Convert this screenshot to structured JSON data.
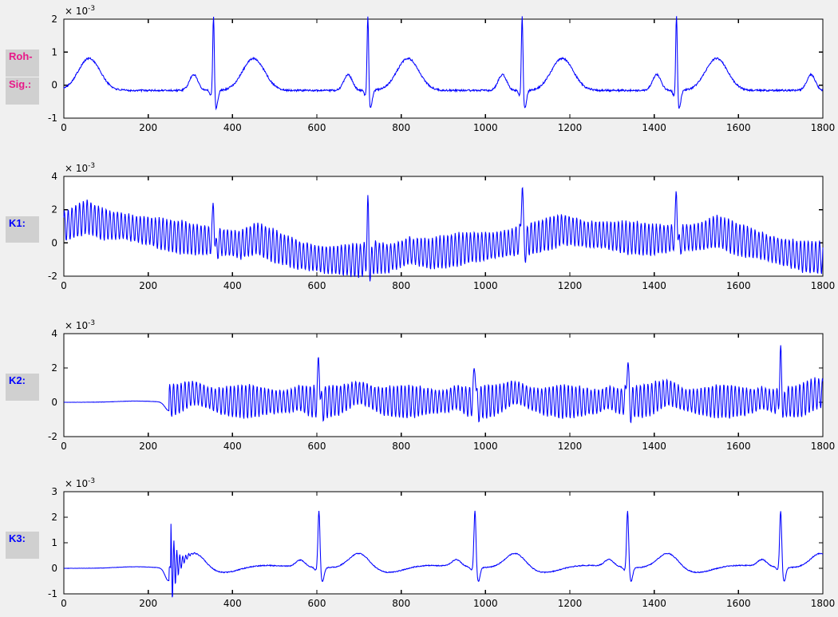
{
  "figure": {
    "bg_color": "#f0f0f0",
    "plot_bg": "#ffffff",
    "frame_color": "#000000",
    "tick_label_color": "#000000",
    "line_color": "#0000ff",
    "label_bg": "#d0d0d0"
  },
  "labels": {
    "roh": {
      "text": "Roh-",
      "color": "#e81889"
    },
    "sig": {
      "text": "Sig.:",
      "color": "#e81889"
    },
    "k1": {
      "text": "K1:",
      "color": "#0000ff"
    },
    "k2": {
      "text": "K2:",
      "color": "#0000ff"
    },
    "k3": {
      "text": "K3:",
      "color": "#0000ff"
    }
  },
  "chart_data": [
    {
      "id": "roh-sig",
      "type": "line",
      "title": "",
      "xlabel": "",
      "ylabel": "",
      "grid": false,
      "legend": null,
      "xlim": [
        0,
        1800
      ],
      "ylim": [
        -1,
        2
      ],
      "x_ticks": [
        0,
        200,
        400,
        600,
        800,
        1000,
        1200,
        1400,
        1600,
        1800
      ],
      "y_ticks": [
        -1,
        0,
        1,
        2
      ],
      "y_scale": {
        "mantissa": "× 10",
        "exponent": "-3"
      },
      "description": "Raw ECG signal: baseline -0.16e-3, P waves, tall clipped QRS spikes (~2.3e-3) and T waves (~0.8e-3), beat period ~366 samples",
      "signal": {
        "kind": "ecg",
        "baseline_mv": -0.16,
        "noise_amp": 0.028,
        "beat_centers": [
          -35,
          355,
          721,
          1087,
          1453,
          1819
        ],
        "qrs": {
          "width": 1.9,
          "amp": 2.45
        },
        "q": {
          "offset": -6,
          "width": 3,
          "amp": -0.15
        },
        "s": {
          "offset": 6,
          "width": 4,
          "amp": -0.55
        },
        "p": {
          "offset": -47,
          "width": 10,
          "amp": 0.48
        },
        "t": {
          "offset": 95,
          "width": 26,
          "amp": 0.97
        }
      }
    },
    {
      "id": "k1",
      "type": "line",
      "title": "",
      "xlabel": "",
      "ylabel": "",
      "grid": false,
      "legend": null,
      "xlim": [
        0,
        1800
      ],
      "ylim": [
        -2,
        4
      ],
      "x_ticks": [
        0,
        200,
        400,
        600,
        800,
        1000,
        1200,
        1400,
        1600,
        1800
      ],
      "y_ticks": [
        -2,
        0,
        2,
        4
      ],
      "y_scale": {
        "mantissa": "× 10",
        "exponent": "-3"
      },
      "description": "ECG with strong high-frequency mains noise (~±0.9e-3) and slow baseline wander; QRS spikes reach 2.6/2.1/4.0/3.3e-3 at x=355/721/1087/1453",
      "signal": {
        "kind": "ecg_noisy_wander",
        "noise_amp": 0.07,
        "osc": {
          "period": 9,
          "amp": 0.9,
          "mod_period": 217,
          "mod_amp": 0.12,
          "phase": 0.7
        },
        "wander_keypoints": [
          [
            0,
            1.0
          ],
          [
            55,
            1.55
          ],
          [
            90,
            1.15
          ],
          [
            150,
            0.95
          ],
          [
            200,
            0.7
          ],
          [
            250,
            0.45
          ],
          [
            300,
            0.25
          ],
          [
            355,
            0.12
          ],
          [
            420,
            -0.1
          ],
          [
            455,
            0.28
          ],
          [
            500,
            -0.2
          ],
          [
            560,
            -0.75
          ],
          [
            620,
            -1.0
          ],
          [
            700,
            -1.05
          ],
          [
            733,
            -0.85
          ],
          [
            770,
            -0.95
          ],
          [
            820,
            -0.45
          ],
          [
            868,
            -0.65
          ],
          [
            910,
            -0.5
          ],
          [
            960,
            -0.3
          ],
          [
            1010,
            -0.2
          ],
          [
            1060,
            0.05
          ],
          [
            1090,
            0.2
          ],
          [
            1130,
            0.4
          ],
          [
            1185,
            0.8
          ],
          [
            1235,
            0.55
          ],
          [
            1290,
            0.45
          ],
          [
            1345,
            0.3
          ],
          [
            1400,
            0.2
          ],
          [
            1453,
            0.3
          ],
          [
            1500,
            0.35
          ],
          [
            1550,
            0.72
          ],
          [
            1600,
            0.2
          ],
          [
            1650,
            -0.15
          ],
          [
            1700,
            -0.5
          ],
          [
            1750,
            -0.8
          ],
          [
            1800,
            -0.88
          ]
        ],
        "beat_centers": [
          355,
          721,
          1087,
          1453
        ],
        "qrs_amps": [
          2.45,
          3.05,
          3.9,
          3.05
        ],
        "qrs_width": 2.0,
        "s": {
          "offset": 5,
          "width": 4,
          "amp": -0.6
        }
      }
    },
    {
      "id": "k2",
      "type": "line",
      "title": "",
      "xlabel": "",
      "ylabel": "",
      "grid": false,
      "legend": null,
      "xlim": [
        0,
        1800
      ],
      "ylim": [
        -2,
        4
      ],
      "x_ticks": [
        0,
        200,
        400,
        600,
        800,
        1000,
        1200,
        1400,
        1600,
        1800
      ],
      "y_ticks": [
        -2,
        0,
        2,
        4
      ],
      "y_scale": {
        "mantissa": "× 10",
        "exponent": "-3"
      },
      "description": "Flat zero until ~250, small dip at ~248, then noisy ECG (osc ±0.8e-3); QRS spikes ~2.9e-3 at x=605/975/1337/1700",
      "signal": {
        "kind": "onset_noisy_ecg",
        "onset": 250,
        "pre": {
          "hump": [
            170,
            45,
            0.07
          ],
          "dip": [
            249,
            9,
            -0.5
          ],
          "noise": 0.006
        },
        "baseline_mv": 0.05,
        "noise_amp": 0.06,
        "osc": {
          "period": 9,
          "amp": 0.82,
          "mod_period": 190,
          "mod_amp": 0.2,
          "phase": 2.1
        },
        "beat_centers": [
          215,
          605,
          975,
          1337,
          1700
        ],
        "qrs_amps": [
          2.6,
          2.6,
          2.5,
          2.7,
          2.7
        ],
        "qrs_width": 2.2,
        "p": {
          "offset": -45,
          "width": 11,
          "amp": 0.22
        },
        "t": {
          "offset": 95,
          "width": 25,
          "amp": 0.5
        },
        "s": {
          "offset": 6,
          "width": 4,
          "amp": -0.4
        }
      }
    },
    {
      "id": "k3",
      "type": "line",
      "title": "",
      "xlabel": "",
      "ylabel": "",
      "grid": false,
      "legend": null,
      "xlim": [
        0,
        1800
      ],
      "ylim": [
        -1,
        3
      ],
      "x_ticks": [
        0,
        200,
        400,
        600,
        800,
        1000,
        1200,
        1400,
        1600,
        1800
      ],
      "y_ticks": [
        -1,
        0,
        1,
        2,
        3
      ],
      "y_scale": {
        "mantissa": "× 10",
        "exponent": "-3"
      },
      "description": "Filtered clean ECG: flat zero until ~250 with dip to -0.6e-3 and decaying ringing burst, then beats with QRS ~2.3e-3 at x=605/975/1337/1700, T waves ~0.6e-3",
      "signal": {
        "kind": "onset_ecg",
        "onset": 250,
        "pre": {
          "hump": [
            170,
            45,
            0.06
          ],
          "dip": [
            248,
            8,
            -0.5
          ],
          "noise": 0.005
        },
        "baseline_mv": 0.02,
        "noise_amp": 0.018,
        "ring": {
          "start": 254,
          "period": 7,
          "decay": 13,
          "amp": 1.7
        },
        "beat_centers": [
          215,
          605,
          975,
          1337,
          1700
        ],
        "qrs_amps": [
          2.3,
          2.3,
          2.3,
          2.3,
          2.3
        ],
        "qrs_width": 2.4,
        "q": {
          "offset": -7,
          "width": 3.5,
          "amp": -0.12
        },
        "s": {
          "offset": 8,
          "width": 4,
          "amp": -0.55
        },
        "p": {
          "offset": -44,
          "width": 11,
          "amp": 0.27
        },
        "t": {
          "offset": 96,
          "width": 24,
          "amp": 0.6
        },
        "after_t_dip": {
          "offset": 165,
          "width": 38,
          "amp": -0.22
        },
        "after_t_hump": {
          "offset": 255,
          "width": 60,
          "amp": 0.1
        }
      }
    }
  ]
}
